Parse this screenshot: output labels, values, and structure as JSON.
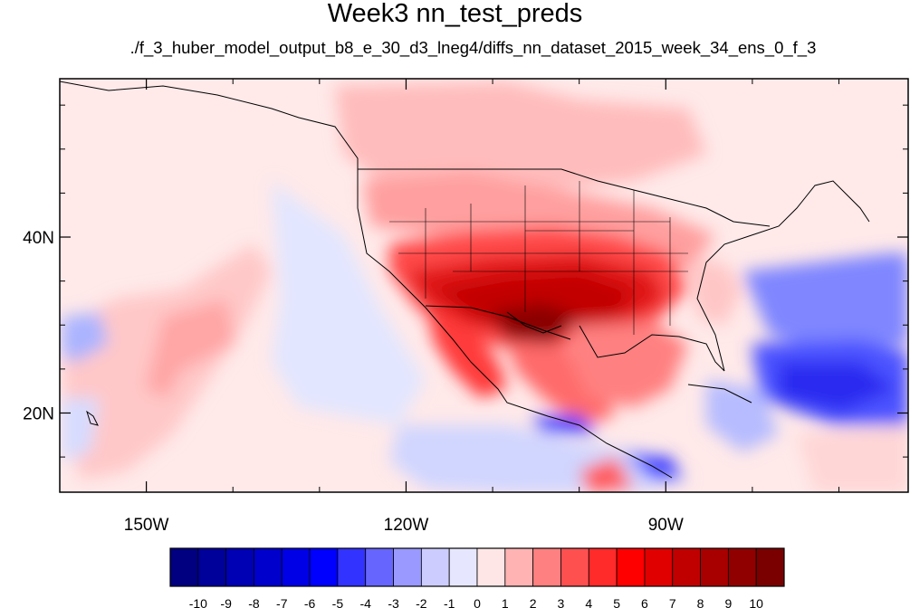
{
  "chart_data": {
    "type": "heatmap",
    "title": "Week3 nn_test_preds",
    "subtitle": "./f_3_huber_model_output_b8_e_30_d3_lneg4/diffs_nn_dataset_2015_week_34_ens_0_f_3",
    "x_range": [
      -160,
      -62
    ],
    "y_range": [
      11,
      58
    ],
    "x_ticks": [
      {
        "value": -150,
        "label": "150W"
      },
      {
        "value": -120,
        "label": "120W"
      },
      {
        "value": -90,
        "label": "90W"
      }
    ],
    "y_ticks": [
      {
        "value": 40,
        "label": "40N"
      },
      {
        "value": 20,
        "label": "20N"
      }
    ],
    "colorbar": {
      "labels": [
        "-10",
        "-9",
        "-8",
        "-7",
        "-6",
        "-5",
        "-4",
        "-3",
        "-2",
        "-1",
        "0",
        "1",
        "2",
        "3",
        "4",
        "5",
        "6",
        "7",
        "8",
        "9",
        "10"
      ],
      "colors": [
        "#000080",
        "#00009a",
        "#0000b4",
        "#0000cd",
        "#0000e6",
        "#0000ff",
        "#3333ff",
        "#6666ff",
        "#9999ff",
        "#ccccff",
        "#e6e6ff",
        "#ffe6e6",
        "#ffb3b3",
        "#ff8080",
        "#ff5050",
        "#ff2a2a",
        "#ff0000",
        "#e00000",
        "#c00000",
        "#a80000",
        "#900000",
        "#7a0000"
      ]
    },
    "fields": [
      {
        "lon": -108,
        "lat": 31,
        "value": 8.5
      },
      {
        "lon": -100,
        "lat": 33,
        "value": 7.5
      },
      {
        "lon": -113,
        "lat": 33,
        "value": 7
      },
      {
        "lon": -95,
        "lat": 35,
        "value": 6
      },
      {
        "lon": -105,
        "lat": 37,
        "value": 5
      },
      {
        "lon": -115,
        "lat": 37,
        "value": 4
      },
      {
        "lon": -112,
        "lat": 25,
        "value": 4
      },
      {
        "lon": -98,
        "lat": 22,
        "value": 4
      },
      {
        "lon": -92,
        "lat": 28,
        "value": 4
      },
      {
        "lon": -108,
        "lat": 43,
        "value": 3
      },
      {
        "lon": -100,
        "lat": 45,
        "value": 2
      },
      {
        "lon": -113,
        "lat": 52,
        "value": 2
      },
      {
        "lon": -90,
        "lat": 40,
        "value": 3
      },
      {
        "lon": -138,
        "lat": 32,
        "value": 2
      },
      {
        "lon": -150,
        "lat": 22,
        "value": 1.5
      },
      {
        "lon": -74,
        "lat": 24,
        "value": -4
      },
      {
        "lon": -68,
        "lat": 33,
        "value": -3
      },
      {
        "lon": -88,
        "lat": 15,
        "value": -4
      },
      {
        "lon": -100,
        "lat": 19,
        "value": -4
      },
      {
        "lon": -125,
        "lat": 30,
        "value": -1
      }
    ]
  }
}
